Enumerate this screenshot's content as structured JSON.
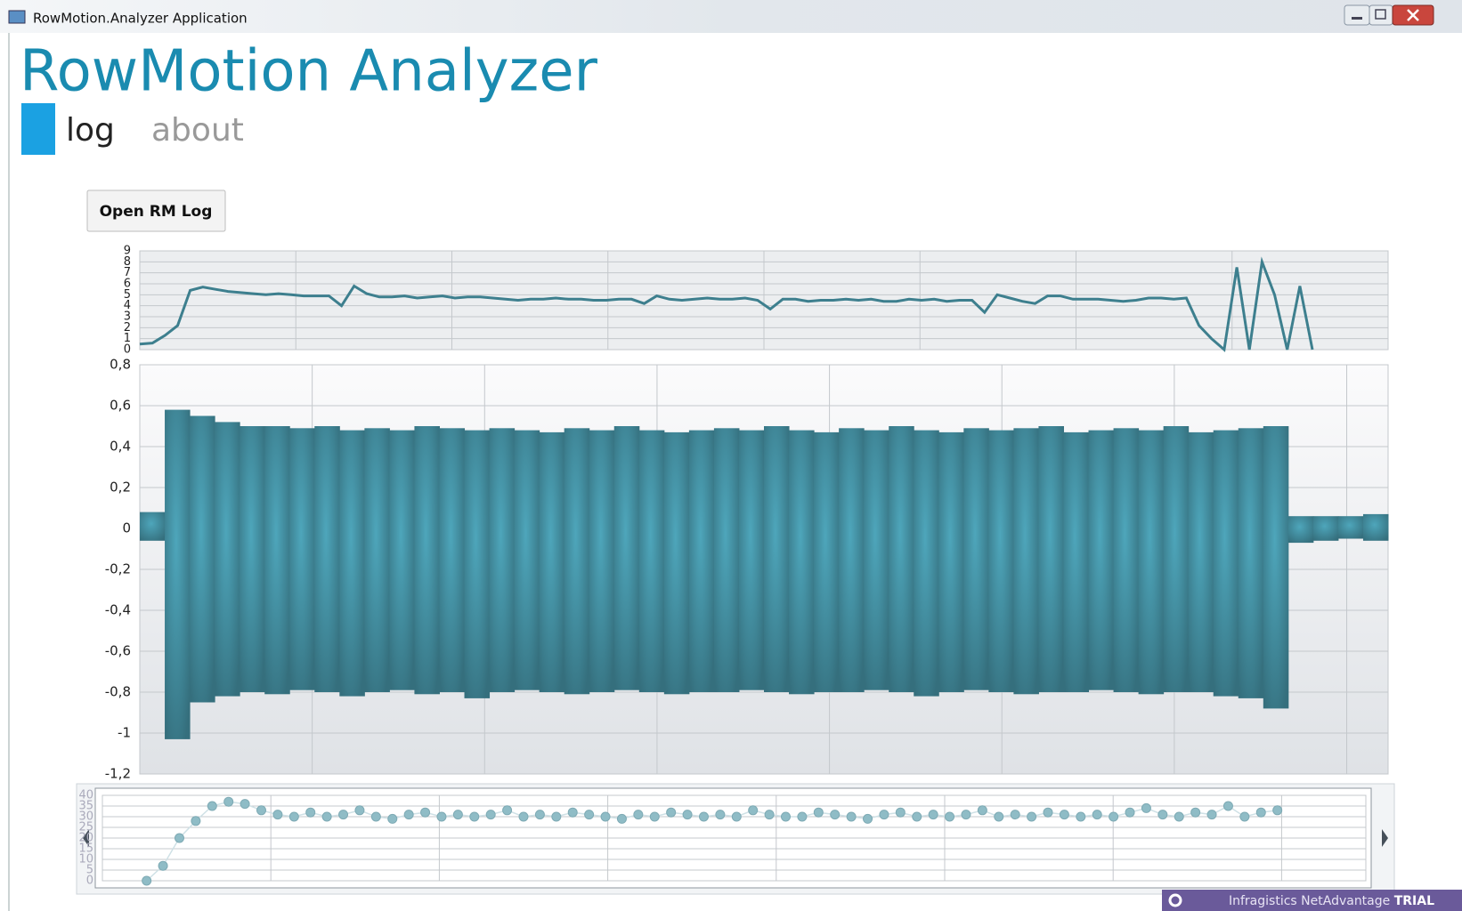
{
  "window": {
    "title": "RowMotion.Analyzer Application"
  },
  "app": {
    "title": "RowMotion Analyzer",
    "tabs": [
      "log",
      "about"
    ],
    "button": "Open RM Log"
  },
  "trial": {
    "text": "Infragistics NetAdvantage",
    "strong": "TRIAL"
  },
  "charts": [
    {
      "type": "line",
      "color": "#3d7f8e",
      "ylim": [
        0,
        9
      ],
      "yticks": [
        0,
        1,
        2,
        3,
        4,
        5,
        6,
        7,
        8,
        9
      ],
      "grid": true,
      "values": [
        0.5,
        0.6,
        1.3,
        2.2,
        5.4,
        5.7,
        5.5,
        5.3,
        5.2,
        5.1,
        5.0,
        5.1,
        5.0,
        4.9,
        4.9,
        4.9,
        4.0,
        5.8,
        5.1,
        4.8,
        4.8,
        4.9,
        4.7,
        4.8,
        4.9,
        4.7,
        4.8,
        4.8,
        4.7,
        4.6,
        4.5,
        4.6,
        4.6,
        4.7,
        4.6,
        4.6,
        4.5,
        4.5,
        4.6,
        4.6,
        4.2,
        4.9,
        4.6,
        4.5,
        4.6,
        4.7,
        4.6,
        4.6,
        4.7,
        4.5,
        3.7,
        4.6,
        4.6,
        4.4,
        4.5,
        4.5,
        4.6,
        4.5,
        4.6,
        4.4,
        4.4,
        4.6,
        4.5,
        4.6,
        4.4,
        4.5,
        4.5,
        3.4,
        5.0,
        4.7,
        4.4,
        4.2,
        4.9,
        4.9,
        4.6,
        4.6,
        4.6,
        4.5,
        4.4,
        4.5,
        4.7,
        4.7,
        4.6,
        4.7,
        2.2,
        1.0,
        0,
        7.5,
        0,
        8,
        5,
        0,
        5.8,
        0,
        null,
        null,
        null,
        null,
        null,
        null
      ]
    },
    {
      "type": "range",
      "color": "#3f8797",
      "ylim": [
        -1.2,
        0.8
      ],
      "grid": true,
      "yticks": [
        {
          "value": 0.8,
          "label": "0,8"
        },
        {
          "value": 0.6,
          "label": "0,6"
        },
        {
          "value": 0.4,
          "label": "0,4"
        },
        {
          "value": 0.2,
          "label": "0,2"
        },
        0,
        {
          "value": -0.2,
          "label": "-0,2"
        },
        {
          "value": -0.4,
          "label": "-0,4"
        },
        {
          "value": -0.6,
          "label": "-0,6"
        },
        {
          "value": -0.8,
          "label": "-0,8"
        },
        -1,
        {
          "value": -1.2,
          "label": "-1,2"
        }
      ],
      "upper": [
        0.08,
        0.58,
        0.55,
        0.52,
        0.5,
        0.5,
        0.49,
        0.5,
        0.48,
        0.49,
        0.48,
        0.5,
        0.49,
        0.48,
        0.49,
        0.48,
        0.47,
        0.49,
        0.48,
        0.5,
        0.48,
        0.47,
        0.48,
        0.49,
        0.48,
        0.5,
        0.48,
        0.47,
        0.49,
        0.48,
        0.5,
        0.48,
        0.47,
        0.49,
        0.48,
        0.49,
        0.5,
        0.47,
        0.48,
        0.49,
        0.48,
        0.5,
        0.47,
        0.48,
        0.49,
        0.5,
        0.06,
        0.06,
        0.06,
        0.07
      ],
      "lower": [
        -0.06,
        -1.03,
        -0.85,
        -0.82,
        -0.8,
        -0.81,
        -0.79,
        -0.8,
        -0.82,
        -0.8,
        -0.79,
        -0.81,
        -0.8,
        -0.83,
        -0.8,
        -0.79,
        -0.8,
        -0.81,
        -0.8,
        -0.79,
        -0.8,
        -0.81,
        -0.8,
        -0.8,
        -0.79,
        -0.8,
        -0.81,
        -0.8,
        -0.8,
        -0.79,
        -0.8,
        -0.82,
        -0.8,
        -0.79,
        -0.8,
        -0.81,
        -0.8,
        -0.8,
        -0.79,
        -0.8,
        -0.81,
        -0.8,
        -0.8,
        -0.82,
        -0.83,
        -0.88,
        -0.07,
        -0.06,
        -0.05,
        -0.06
      ]
    },
    {
      "type": "scatter",
      "color": "#8fbcc6",
      "ylim": [
        0,
        40
      ],
      "yticks": [
        0,
        5,
        10,
        15,
        20,
        25,
        30,
        35,
        40
      ],
      "grid": true,
      "values": [
        0,
        7,
        20,
        28,
        35,
        37,
        36,
        33,
        31,
        30,
        32,
        30,
        31,
        33,
        30,
        29,
        31,
        32,
        30,
        31,
        30,
        31,
        33,
        30,
        31,
        30,
        32,
        31,
        30,
        29,
        31,
        30,
        32,
        31,
        30,
        31,
        30,
        33,
        31,
        30,
        30,
        32,
        31,
        30,
        29,
        31,
        32,
        30,
        31,
        30,
        31,
        33,
        30,
        31,
        30,
        32,
        31,
        30,
        31,
        30,
        32,
        34,
        31,
        30,
        32,
        31,
        35,
        30,
        32,
        33
      ]
    }
  ]
}
